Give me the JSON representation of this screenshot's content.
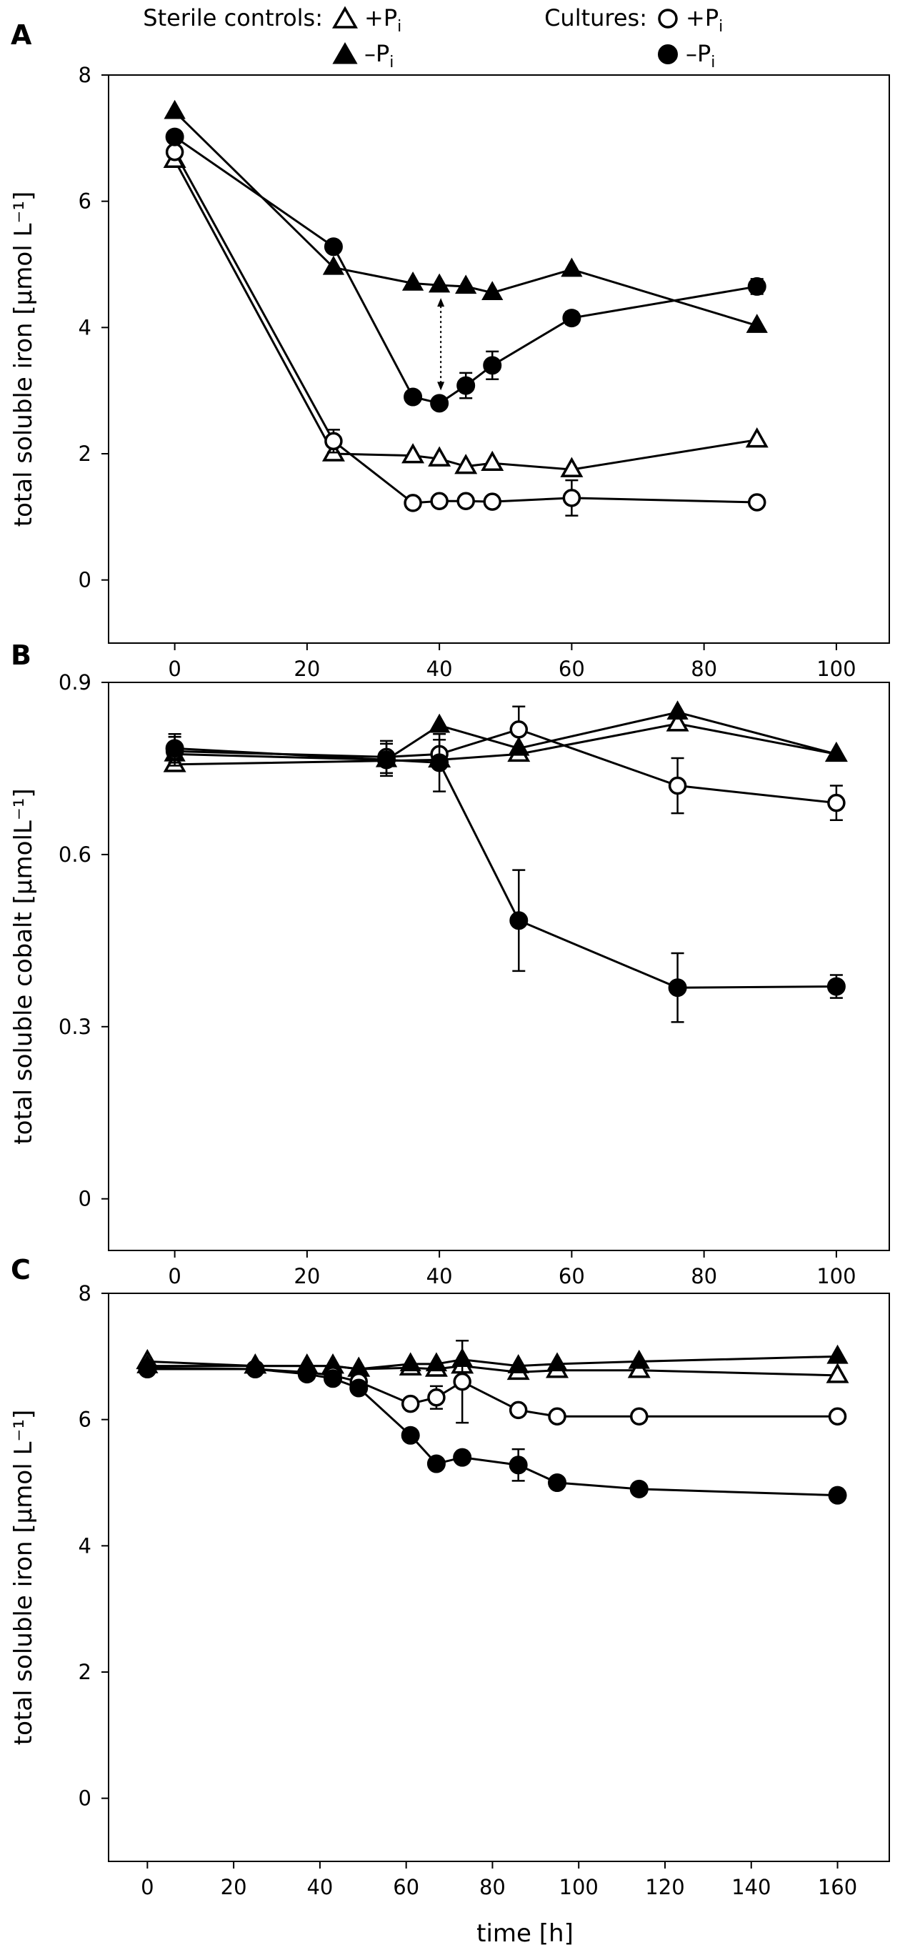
{
  "legend": {
    "sterile_label": "Sterile controls:",
    "cultures_label": "Cultures:",
    "plus_label": "+P",
    "minus_label": "–P",
    "subscript": "i"
  },
  "xlabel": "time [h]",
  "chart_data": [
    {
      "type": "line",
      "panel": "A",
      "ylabel": "total soluble iron [µmol L⁻¹]",
      "xlim": [
        -10,
        108
      ],
      "ylim": [
        -1,
        8
      ],
      "xticks": [
        0,
        20,
        40,
        60,
        80,
        100
      ],
      "yticks": [
        0,
        2,
        4,
        6,
        8
      ],
      "annotation": "dotted double-headed arrow at t=40 h between –P sterile control and –P culture",
      "series": [
        {
          "name": "Sterile controls +Pi",
          "marker": "triangle-open",
          "x": [
            0,
            24,
            36,
            40,
            44,
            48,
            60,
            88
          ],
          "y": [
            6.65,
            2.0,
            1.97,
            1.92,
            1.8,
            1.85,
            1.75,
            2.22
          ],
          "err": [
            0,
            0,
            0,
            0,
            0,
            0,
            0,
            0
          ]
        },
        {
          "name": "Sterile controls –Pi",
          "marker": "triangle-filled",
          "x": [
            0,
            24,
            36,
            40,
            44,
            48,
            60,
            88
          ],
          "y": [
            7.42,
            4.95,
            4.7,
            4.67,
            4.65,
            4.55,
            4.92,
            4.03
          ],
          "err": [
            0,
            0,
            0,
            0,
            0,
            0,
            0,
            0
          ]
        },
        {
          "name": "Cultures +Pi",
          "marker": "circle-open",
          "x": [
            0,
            24,
            36,
            40,
            44,
            48,
            60,
            88
          ],
          "y": [
            6.78,
            2.2,
            1.22,
            1.25,
            1.25,
            1.24,
            1.3,
            1.23
          ],
          "err": [
            0,
            0.18,
            0,
            0,
            0,
            0,
            0.28,
            0.08
          ]
        },
        {
          "name": "Cultures –Pi",
          "marker": "circle-filled",
          "x": [
            0,
            24,
            36,
            40,
            44,
            48,
            60,
            88
          ],
          "y": [
            7.02,
            5.28,
            2.9,
            2.8,
            3.08,
            3.4,
            4.15,
            4.65
          ],
          "err": [
            0,
            0.05,
            0.05,
            0.08,
            0.2,
            0.22,
            0.1,
            0.12
          ]
        }
      ]
    },
    {
      "type": "line",
      "panel": "B",
      "ylabel": "total soluble cobalt [µmolL⁻¹]",
      "xlim": [
        -10,
        108
      ],
      "ylim": [
        -0.09,
        0.9
      ],
      "xticks": [
        0,
        20,
        40,
        60,
        80,
        100
      ],
      "yticks": [
        0,
        0.3,
        0.6,
        0.9
      ],
      "ytick_labels": [
        "0",
        "0.3",
        "0.6",
        "0.9"
      ],
      "series": [
        {
          "name": "Sterile controls +Pi",
          "marker": "triangle-open",
          "x": [
            0,
            40,
            52,
            76,
            100
          ],
          "y": [
            0.757,
            0.765,
            0.775,
            0.828,
            0.775
          ],
          "err": [
            0,
            0,
            0,
            0,
            0
          ]
        },
        {
          "name": "Sterile controls –Pi",
          "marker": "triangle-filled",
          "x": [
            0,
            32,
            40,
            52,
            76,
            100
          ],
          "y": [
            0.775,
            0.765,
            0.825,
            0.785,
            0.848,
            0.775
          ],
          "err": [
            0,
            0,
            0,
            0,
            0,
            0
          ]
        },
        {
          "name": "Cultures +Pi",
          "marker": "circle-open",
          "x": [
            0,
            32,
            40,
            52,
            76,
            100
          ],
          "y": [
            0.78,
            0.77,
            0.775,
            0.818,
            0.72,
            0.69
          ],
          "err": [
            0.025,
            0.028,
            0.025,
            0.04,
            0.048,
            0.03
          ]
        },
        {
          "name": "Cultures –Pi",
          "marker": "circle-filled",
          "x": [
            0,
            32,
            40,
            52,
            76,
            100
          ],
          "y": [
            0.785,
            0.765,
            0.76,
            0.485,
            0.368,
            0.37
          ],
          "err": [
            0.025,
            0.028,
            0.05,
            0.088,
            0.06,
            0.02
          ]
        }
      ]
    },
    {
      "type": "line",
      "panel": "C",
      "ylabel": "total soluble iron [µmol L⁻¹]",
      "xlim": [
        -9,
        172
      ],
      "ylim": [
        -1,
        8
      ],
      "xticks": [
        0,
        20,
        40,
        60,
        80,
        100,
        120,
        140,
        160
      ],
      "yticks": [
        0,
        2,
        4,
        6,
        8
      ],
      "series": [
        {
          "name": "Sterile controls +Pi",
          "marker": "triangle-open",
          "x": [
            0,
            25,
            37,
            43,
            49,
            61,
            67,
            73,
            86,
            95,
            114,
            160
          ],
          "y": [
            6.92,
            6.85,
            6.85,
            6.85,
            6.8,
            6.82,
            6.8,
            6.85,
            6.75,
            6.78,
            6.78,
            6.7
          ],
          "err": [
            0,
            0,
            0,
            0,
            0,
            0,
            0,
            0,
            0,
            0,
            0,
            0
          ]
        },
        {
          "name": "Sterile controls –Pi",
          "marker": "triangle-filled",
          "x": [
            0,
            25,
            37,
            43,
            49,
            61,
            67,
            73,
            86,
            95,
            114,
            160
          ],
          "y": [
            6.85,
            6.85,
            6.85,
            6.85,
            6.8,
            6.88,
            6.88,
            6.95,
            6.85,
            6.88,
            6.92,
            7.0
          ],
          "err": [
            0,
            0,
            0,
            0,
            0,
            0,
            0,
            0,
            0,
            0,
            0,
            0
          ]
        },
        {
          "name": "Cultures +Pi",
          "marker": "circle-open",
          "x": [
            0,
            25,
            37,
            43,
            49,
            61,
            67,
            73,
            86,
            95,
            114,
            160
          ],
          "y": [
            6.82,
            6.8,
            6.75,
            6.7,
            6.6,
            6.25,
            6.35,
            6.6,
            6.15,
            6.05,
            6.05,
            6.05
          ],
          "err": [
            0,
            0,
            0,
            0,
            0,
            0,
            0.18,
            0.65,
            0,
            0,
            0,
            0
          ]
        },
        {
          "name": "Cultures –Pi",
          "marker": "circle-filled",
          "x": [
            0,
            25,
            37,
            43,
            49,
            61,
            67,
            73,
            86,
            95,
            114,
            160
          ],
          "y": [
            6.8,
            6.8,
            6.72,
            6.65,
            6.5,
            5.75,
            5.3,
            5.4,
            5.28,
            5.0,
            4.9,
            4.8
          ],
          "err": [
            0,
            0,
            0,
            0,
            0,
            0,
            0,
            0,
            0.25,
            0,
            0,
            0
          ]
        }
      ]
    }
  ]
}
